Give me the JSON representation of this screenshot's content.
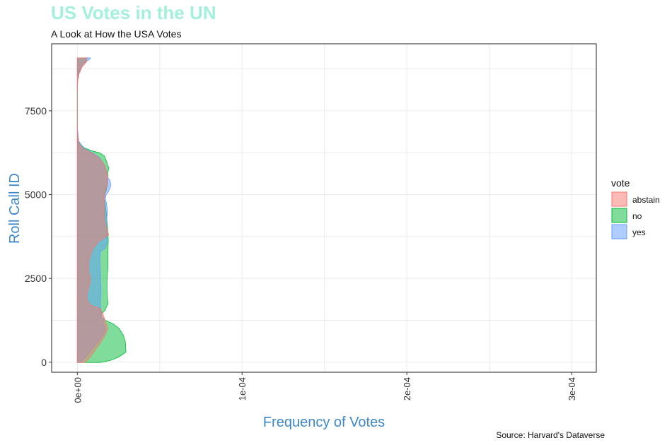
{
  "chart_data": {
    "type": "area",
    "title": "US Votes in the UN",
    "subtitle": "A Look at How the USA Votes",
    "caption": "Source: Harvard's Dataverse",
    "xlabel": "Frequency of Votes",
    "ylabel": "Roll Call ID",
    "xlim": [
      -1.56e-05,
      0.000315
    ],
    "ylim": [
      -300,
      9500
    ],
    "x_ticks": [
      0,
      0.0001,
      0.0002,
      0.0003
    ],
    "x_tick_labels": [
      "0e+00",
      "1e-04",
      "2e-04",
      "3e-04"
    ],
    "y_ticks": [
      0,
      2500,
      5000,
      7500
    ],
    "y_tick_labels": [
      "0",
      "2500",
      "5000",
      "7500"
    ],
    "grid": true,
    "legend": {
      "title": "vote",
      "position": "right",
      "entries": [
        {
          "label": "abstain",
          "color": "#f8766d"
        },
        {
          "label": "no",
          "color": "#00ba38"
        },
        {
          "label": "yes",
          "color": "#619cff"
        }
      ]
    },
    "series": [
      {
        "name": "no",
        "color": "#00ba38",
        "points": [
          [
            0,
            -10
          ],
          [
            1.38e-05,
            -10
          ],
          [
            2e-05,
            50
          ],
          [
            2.5e-05,
            150
          ],
          [
            2.95e-05,
            300
          ],
          [
            2.92e-05,
            600
          ],
          [
            2.8e-05,
            800
          ],
          [
            2.55e-05,
            1000
          ],
          [
            2.15e-05,
            1150
          ],
          [
            1.7e-05,
            1250
          ],
          [
            1.48e-05,
            1350
          ],
          [
            1.4e-05,
            1400
          ],
          [
            1.68e-05,
            1550
          ],
          [
            1.86e-05,
            1750
          ],
          [
            1.82e-05,
            1950
          ],
          [
            1.8e-05,
            2150
          ],
          [
            1.8e-05,
            2350
          ],
          [
            1.82e-05,
            2600
          ],
          [
            1.86e-05,
            2850
          ],
          [
            1.86e-05,
            3100
          ],
          [
            1.86e-05,
            3400
          ],
          [
            1.88e-05,
            3650
          ],
          [
            1.85e-05,
            3900
          ],
          [
            1.81e-05,
            4150
          ],
          [
            1.77e-05,
            4400
          ],
          [
            1.7e-05,
            4700
          ],
          [
            1.62e-05,
            4950
          ],
          [
            1.74e-05,
            5100
          ],
          [
            1.84e-05,
            5350
          ],
          [
            1.85e-05,
            5550
          ],
          [
            1.84e-05,
            5650
          ],
          [
            1.92e-05,
            5800
          ],
          [
            1.83e-05,
            5880
          ],
          [
            1.8e-05,
            5950
          ],
          [
            1.65e-05,
            6150
          ],
          [
            1.35e-05,
            6250
          ],
          [
            9e-06,
            6300
          ],
          [
            4e-06,
            6400
          ],
          [
            1.2e-06,
            6550
          ],
          [
            3e-07,
            6650
          ],
          [
            1e-07,
            6800
          ],
          [
            0,
            7200
          ],
          [
            0,
            8000
          ],
          [
            2e-07,
            8400
          ],
          [
            8e-07,
            8600
          ],
          [
            2e-06,
            8800
          ],
          [
            4.5e-06,
            8950
          ],
          [
            6.2e-06,
            9080
          ],
          [
            0,
            9080
          ]
        ]
      },
      {
        "name": "yes",
        "color": "#619cff",
        "points": [
          [
            0,
            -10
          ],
          [
            1.9e-06,
            -10
          ],
          [
            5e-06,
            150
          ],
          [
            9e-06,
            400
          ],
          [
            1.3e-05,
            650
          ],
          [
            1.6e-05,
            850
          ],
          [
            1.72e-05,
            1000
          ],
          [
            1.58e-05,
            1150
          ],
          [
            1.52e-05,
            1300
          ],
          [
            1.43e-05,
            1550
          ],
          [
            1.4e-05,
            1800
          ],
          [
            1.44e-05,
            2100
          ],
          [
            1.4e-05,
            2450
          ],
          [
            1.4e-05,
            2700
          ],
          [
            1.36e-05,
            3050
          ],
          [
            1.4e-05,
            3300
          ],
          [
            1.68e-05,
            3400
          ],
          [
            1.8e-05,
            3550
          ],
          [
            1.8e-05,
            3750
          ],
          [
            1.79e-05,
            4000
          ],
          [
            1.78e-05,
            4250
          ],
          [
            1.82e-05,
            4450
          ],
          [
            1.82e-05,
            4550
          ],
          [
            1.77e-05,
            4750
          ],
          [
            1.7e-05,
            4850
          ],
          [
            1.75e-05,
            5000
          ],
          [
            1.9e-05,
            5100
          ],
          [
            2.02e-05,
            5250
          ],
          [
            2.02e-05,
            5350
          ],
          [
            1.95e-05,
            5450
          ],
          [
            1.85e-05,
            5500
          ],
          [
            1.75e-05,
            5700
          ],
          [
            1.62e-05,
            5900
          ],
          [
            1.35e-05,
            6100
          ],
          [
            9e-06,
            6250
          ],
          [
            3.5e-06,
            6400
          ],
          [
            8e-07,
            6600
          ],
          [
            0,
            7000
          ],
          [
            0,
            8000
          ],
          [
            2e-07,
            8400
          ],
          [
            1.2e-06,
            8650
          ],
          [
            2.6e-06,
            8850
          ],
          [
            4.8e-06,
            8950
          ],
          [
            7.8e-06,
            9050
          ],
          [
            7.8e-06,
            9080
          ],
          [
            0,
            9080
          ]
        ]
      },
      {
        "name": "abstain",
        "color": "#f8766d",
        "points": [
          [
            0,
            -10
          ],
          [
            4.3e-06,
            -10
          ],
          [
            7e-06,
            100
          ],
          [
            1e-05,
            300
          ],
          [
            1.35e-05,
            550
          ],
          [
            1.68e-05,
            800
          ],
          [
            1.84e-05,
            1000
          ],
          [
            1.75e-05,
            1150
          ],
          [
            1.55e-05,
            1450
          ],
          [
            1.4e-05,
            1600
          ],
          [
            8e-06,
            1700
          ],
          [
            5.8e-06,
            1850
          ],
          [
            6e-06,
            2050
          ],
          [
            8e-06,
            2450
          ],
          [
            7e-06,
            2700
          ],
          [
            6.8e-06,
            3000
          ],
          [
            9e-06,
            3350
          ],
          [
            1.3e-05,
            3600
          ],
          [
            1.9e-05,
            3800
          ],
          [
            1.78e-05,
            4000
          ],
          [
            1.66e-05,
            4200
          ],
          [
            1.65e-05,
            4500
          ],
          [
            1.63e-05,
            4750
          ],
          [
            1.65e-05,
            4950
          ],
          [
            1.72e-05,
            5150
          ],
          [
            1.83e-05,
            5350
          ],
          [
            1.83e-05,
            5500
          ],
          [
            1.78e-05,
            5700
          ],
          [
            1.65e-05,
            5900
          ],
          [
            1.3e-05,
            6100
          ],
          [
            8.5e-06,
            6250
          ],
          [
            4e-06,
            6350
          ],
          [
            1e-06,
            6500
          ],
          [
            1e-07,
            6800
          ],
          [
            0,
            7200
          ],
          [
            0,
            8000
          ],
          [
            2e-07,
            8400
          ],
          [
            1e-06,
            8600
          ],
          [
            2.8e-06,
            8800
          ],
          [
            5.5e-06,
            8950
          ],
          [
            5.8e-06,
            9080
          ],
          [
            0,
            9080
          ]
        ]
      }
    ]
  }
}
